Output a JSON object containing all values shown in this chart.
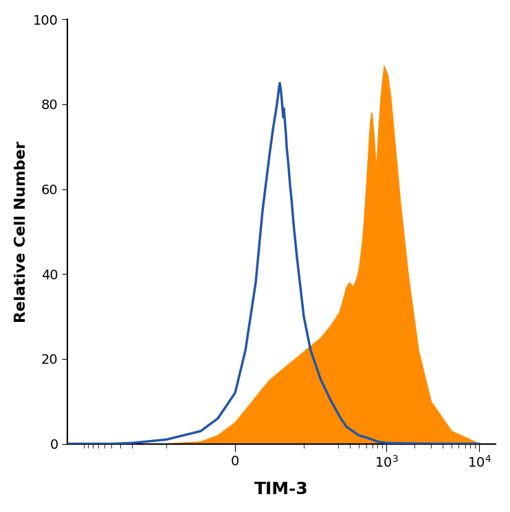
{
  "title": "",
  "xlabel": "TIM-3",
  "ylabel": "Relative Cell Number",
  "ylim": [
    0,
    100
  ],
  "xlabel_fontsize": 18,
  "ylabel_fontsize": 16,
  "tick_fontsize": 14,
  "blue_color": "#2255AA",
  "orange_color": "#FF8C00",
  "background_color": "#ffffff",
  "blue_linewidth": 2.5,
  "orange_linewidth": 0.8,
  "linthresh": 300,
  "linscale": 1.0,
  "blue_curve": {
    "x": [
      -1500,
      -800,
      -500,
      -300,
      -200,
      -100,
      -50,
      0,
      30,
      60,
      80,
      100,
      110,
      120,
      125,
      128,
      130,
      132,
      135,
      138,
      140,
      142,
      145,
      148,
      150,
      155,
      160,
      165,
      170,
      180,
      190,
      200,
      220,
      250,
      280,
      320,
      370,
      430,
      500,
      600,
      700,
      800,
      1000,
      1500,
      3000,
      10000
    ],
    "y": [
      0,
      0,
      0,
      0.2,
      1,
      3,
      6,
      12,
      22,
      38,
      55,
      68,
      74,
      79,
      82,
      84,
      85,
      84,
      82,
      79,
      77,
      79,
      76,
      73,
      70,
      66,
      61,
      57,
      52,
      44,
      37,
      30,
      22,
      15,
      10,
      6,
      4,
      3,
      2,
      1.5,
      1,
      0.5,
      0.2,
      0.1,
      0.02,
      0
    ]
  },
  "orange_curve": {
    "x": [
      -1500,
      -800,
      -400,
      -200,
      -100,
      -50,
      0,
      30,
      60,
      80,
      100,
      130,
      160,
      190,
      220,
      250,
      280,
      310,
      340,
      370,
      400,
      430,
      460,
      490,
      510,
      530,
      550,
      570,
      590,
      610,
      630,
      650,
      670,
      690,
      710,
      730,
      750,
      780,
      820,
      870,
      940,
      1020,
      1100,
      1200,
      1400,
      1700,
      2200,
      3000,
      5000,
      10000
    ],
    "y": [
      0,
      0,
      0,
      0,
      0.5,
      2,
      5,
      8,
      11,
      13,
      15,
      17,
      19,
      21,
      23,
      25,
      28,
      31,
      34,
      37,
      38,
      37,
      38,
      40,
      42,
      45,
      48,
      52,
      57,
      62,
      67,
      72,
      76,
      78,
      75,
      72,
      68,
      65,
      74,
      82,
      89,
      87,
      82,
      73,
      57,
      40,
      22,
      10,
      3,
      0
    ]
  }
}
